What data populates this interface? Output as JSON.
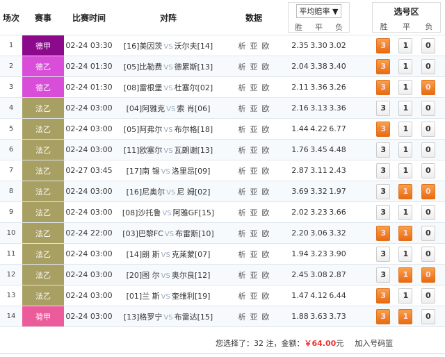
{
  "header": {
    "no": "场次",
    "league": "赛事",
    "time": "比赛时间",
    "match": "对阵",
    "data": "数据",
    "odds_select": "平均赔率",
    "odds_labels": [
      "胜",
      "平",
      "负"
    ],
    "pick_title": "选号区",
    "pick_labels": [
      "胜",
      "平",
      "负"
    ]
  },
  "colors": {
    "德甲": "#8b0a8b",
    "德乙": "#d94ed9",
    "法乙": "#a89f63",
    "荷甲": "#ec5c9a",
    "selected": "#ec7a22"
  },
  "data_links": [
    "析",
    "亚",
    "欧"
  ],
  "vs": "VS",
  "pick_values": [
    "3",
    "1",
    "0"
  ],
  "rows": [
    {
      "no": "1",
      "league": "德甲",
      "time": "02-24 03:30",
      "home": "[16]美因茨",
      "away": "沃尔夫[14]",
      "odds": [
        "2.35",
        "3.30",
        "3.02"
      ],
      "sel": [
        true,
        false,
        false
      ]
    },
    {
      "no": "2",
      "league": "德乙",
      "time": "02-24 01:30",
      "home": "[05]比勒费",
      "away": "德累斯[13]",
      "odds": [
        "2.04",
        "3.38",
        "3.40"
      ],
      "sel": [
        true,
        false,
        false
      ]
    },
    {
      "no": "3",
      "league": "德乙",
      "time": "02-24 01:30",
      "home": "[08]雷根堡",
      "away": "杜塞尔[02]",
      "odds": [
        "2.11",
        "3.36",
        "3.26"
      ],
      "sel": [
        true,
        false,
        true
      ]
    },
    {
      "no": "4",
      "league": "法乙",
      "time": "02-24 03:00",
      "home": "[04]阿雅克",
      "away": "索 肖[06]",
      "odds": [
        "2.16",
        "3.13",
        "3.36"
      ],
      "sel": [
        false,
        false,
        false
      ]
    },
    {
      "no": "5",
      "league": "法乙",
      "time": "02-24 03:00",
      "home": "[05]阿弗尔",
      "away": "布尔格[18]",
      "odds": [
        "1.44",
        "4.22",
        "6.77"
      ],
      "sel": [
        true,
        false,
        false
      ]
    },
    {
      "no": "6",
      "league": "法乙",
      "time": "02-24 03:00",
      "home": "[11]欧塞尔",
      "away": "瓦朗谢[13]",
      "odds": [
        "1.76",
        "3.45",
        "4.48"
      ],
      "sel": [
        false,
        false,
        false
      ]
    },
    {
      "no": "7",
      "league": "法乙",
      "time": "02-27 03:45",
      "home": "[17]南 锡",
      "away": "洛里昂[09]",
      "odds": [
        "2.87",
        "3.11",
        "2.43"
      ],
      "sel": [
        false,
        false,
        false
      ]
    },
    {
      "no": "8",
      "league": "法乙",
      "time": "02-24 03:00",
      "home": "[16]尼奥尔",
      "away": "尼 姆[02]",
      "odds": [
        "3.69",
        "3.32",
        "1.97"
      ],
      "sel": [
        false,
        true,
        true
      ]
    },
    {
      "no": "9",
      "league": "法乙",
      "time": "02-24 03:00",
      "home": "[08]沙托鲁",
      "away": "阿雅GF[15]",
      "odds": [
        "2.02",
        "3.23",
        "3.66"
      ],
      "sel": [
        false,
        false,
        false
      ]
    },
    {
      "no": "10",
      "league": "法乙",
      "time": "02-24 22:00",
      "home": "[03]巴黎FC",
      "away": "布雷斯[10]",
      "odds": [
        "2.20",
        "3.06",
        "3.32"
      ],
      "sel": [
        true,
        true,
        false
      ]
    },
    {
      "no": "11",
      "league": "法乙",
      "time": "02-24 03:00",
      "home": "[14]朗 斯",
      "away": "克莱蒙[07]",
      "odds": [
        "1.94",
        "3.23",
        "3.90"
      ],
      "sel": [
        false,
        false,
        false
      ]
    },
    {
      "no": "12",
      "league": "法乙",
      "time": "02-24 03:00",
      "home": "[20]图 尔",
      "away": "奥尔良[12]",
      "odds": [
        "2.45",
        "3.08",
        "2.87"
      ],
      "sel": [
        false,
        true,
        true
      ]
    },
    {
      "no": "13",
      "league": "法乙",
      "time": "02-24 03:00",
      "home": "[01]兰 斯",
      "away": "奎维利[19]",
      "odds": [
        "1.47",
        "4.12",
        "6.44"
      ],
      "sel": [
        true,
        false,
        false
      ]
    },
    {
      "no": "14",
      "league": "荷甲",
      "time": "02-24 03:00",
      "home": "[13]格罗宁",
      "away": "布雷达[15]",
      "odds": [
        "1.88",
        "3.63",
        "3.73"
      ],
      "sel": [
        true,
        true,
        false
      ]
    }
  ],
  "footer": {
    "prefix": "您选择了：",
    "count": "32",
    "mid": " 注，金额：",
    "amount": "￥64.00",
    "unit": "元",
    "add": "加入号码篮"
  }
}
